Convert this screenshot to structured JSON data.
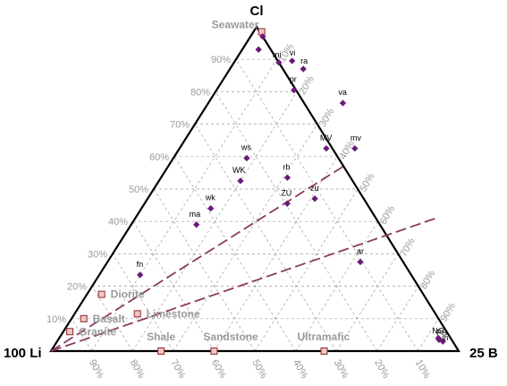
{
  "chart_data": {
    "type": "scatter",
    "subtype": "ternary",
    "vertices": {
      "top": "Cl",
      "left": "100 Li",
      "right": "25 B"
    },
    "ticks": {
      "cl": [
        "10%",
        "20%",
        "30%",
        "40%",
        "50%",
        "60%",
        "70%",
        "80%",
        "90%"
      ],
      "b": [
        "10%",
        "20%",
        "30%",
        "40%",
        "50%",
        "60%",
        "70%",
        "80%",
        "90%"
      ],
      "li": [
        "10%",
        "20%",
        "30%",
        "40%",
        "50%",
        "60%",
        "70%",
        "80%",
        "90%"
      ]
    },
    "grid": true,
    "colors": {
      "samples": "#6a1b7a",
      "reference_fill": "#f2c4c4",
      "reference_stroke": "#8b2a2a",
      "mixing_lines": "#8b3a62"
    },
    "samples": [
      {
        "label": "",
        "cl": 97.0,
        "b": 1.5
      },
      {
        "label": "",
        "cl": 93.0,
        "b": 2.0
      },
      {
        "label": "mi",
        "cl": 89.0,
        "b": 5.5
      },
      {
        "label": "vi",
        "cl": 89.5,
        "b": 7.0
      },
      {
        "label": "ra",
        "cl": 87.0,
        "b": 9.0
      },
      {
        "label": "pr",
        "cl": 80.5,
        "b": 9.5
      },
      {
        "label": "va",
        "cl": 76.5,
        "b": 16.5
      },
      {
        "label": "MV",
        "cl": 62.5,
        "b": 18.0
      },
      {
        "label": "mv",
        "cl": 62.5,
        "b": 21.5
      },
      {
        "label": "ws",
        "cl": 59.5,
        "b": 9.0
      },
      {
        "label": "WK",
        "cl": 52.5,
        "b": 10.0
      },
      {
        "label": "rb",
        "cl": 53.5,
        "b": 15.5
      },
      {
        "label": "ZU",
        "cl": 45.5,
        "b": 17.5
      },
      {
        "label": "zu",
        "cl": 47.0,
        "b": 20.5
      },
      {
        "label": "wk",
        "cl": 44.0,
        "b": 8.5
      },
      {
        "label": "ma",
        "cl": 39.0,
        "b": 8.0
      },
      {
        "label": "ar",
        "cl": 27.5,
        "b": 31.0
      },
      {
        "label": "fn",
        "cl": 23.5,
        "b": 5.0
      },
      {
        "label": "NG",
        "cl": 4.0,
        "b": 46.5
      },
      {
        "label": "PS",
        "cl": 3.5,
        "b": 46.7
      },
      {
        "label": "in",
        "cl": 3.0,
        "b": 47.3
      }
    ],
    "reference_points": [
      {
        "label": "Seawater",
        "cl": 98.5,
        "b": 1.0
      },
      {
        "label": "Diorite",
        "cl": 17.5,
        "b": 1.8
      },
      {
        "label": "Basalt",
        "cl": 10.0,
        "b": 1.5
      },
      {
        "label": "Granite",
        "cl": 6.0,
        "b": 0.8
      },
      {
        "label": "Limestone",
        "cl": 11.5,
        "b": 7.7
      },
      {
        "label": "Shale",
        "cl": 0.0,
        "b": 13.5
      },
      {
        "label": "Sandstone",
        "cl": 0.0,
        "b": 20.0
      },
      {
        "label": "Ultramafic",
        "cl": 0.0,
        "b": 33.5
      }
    ],
    "mixing_lines": [
      {
        "from": {
          "cl": 0,
          "b": 0
        },
        "to": {
          "cl": 57,
          "b": 21.5
        }
      },
      {
        "from": {
          "cl": 0,
          "b": 0
        },
        "to": {
          "cl": 41,
          "b": 36.9
        }
      }
    ]
  }
}
